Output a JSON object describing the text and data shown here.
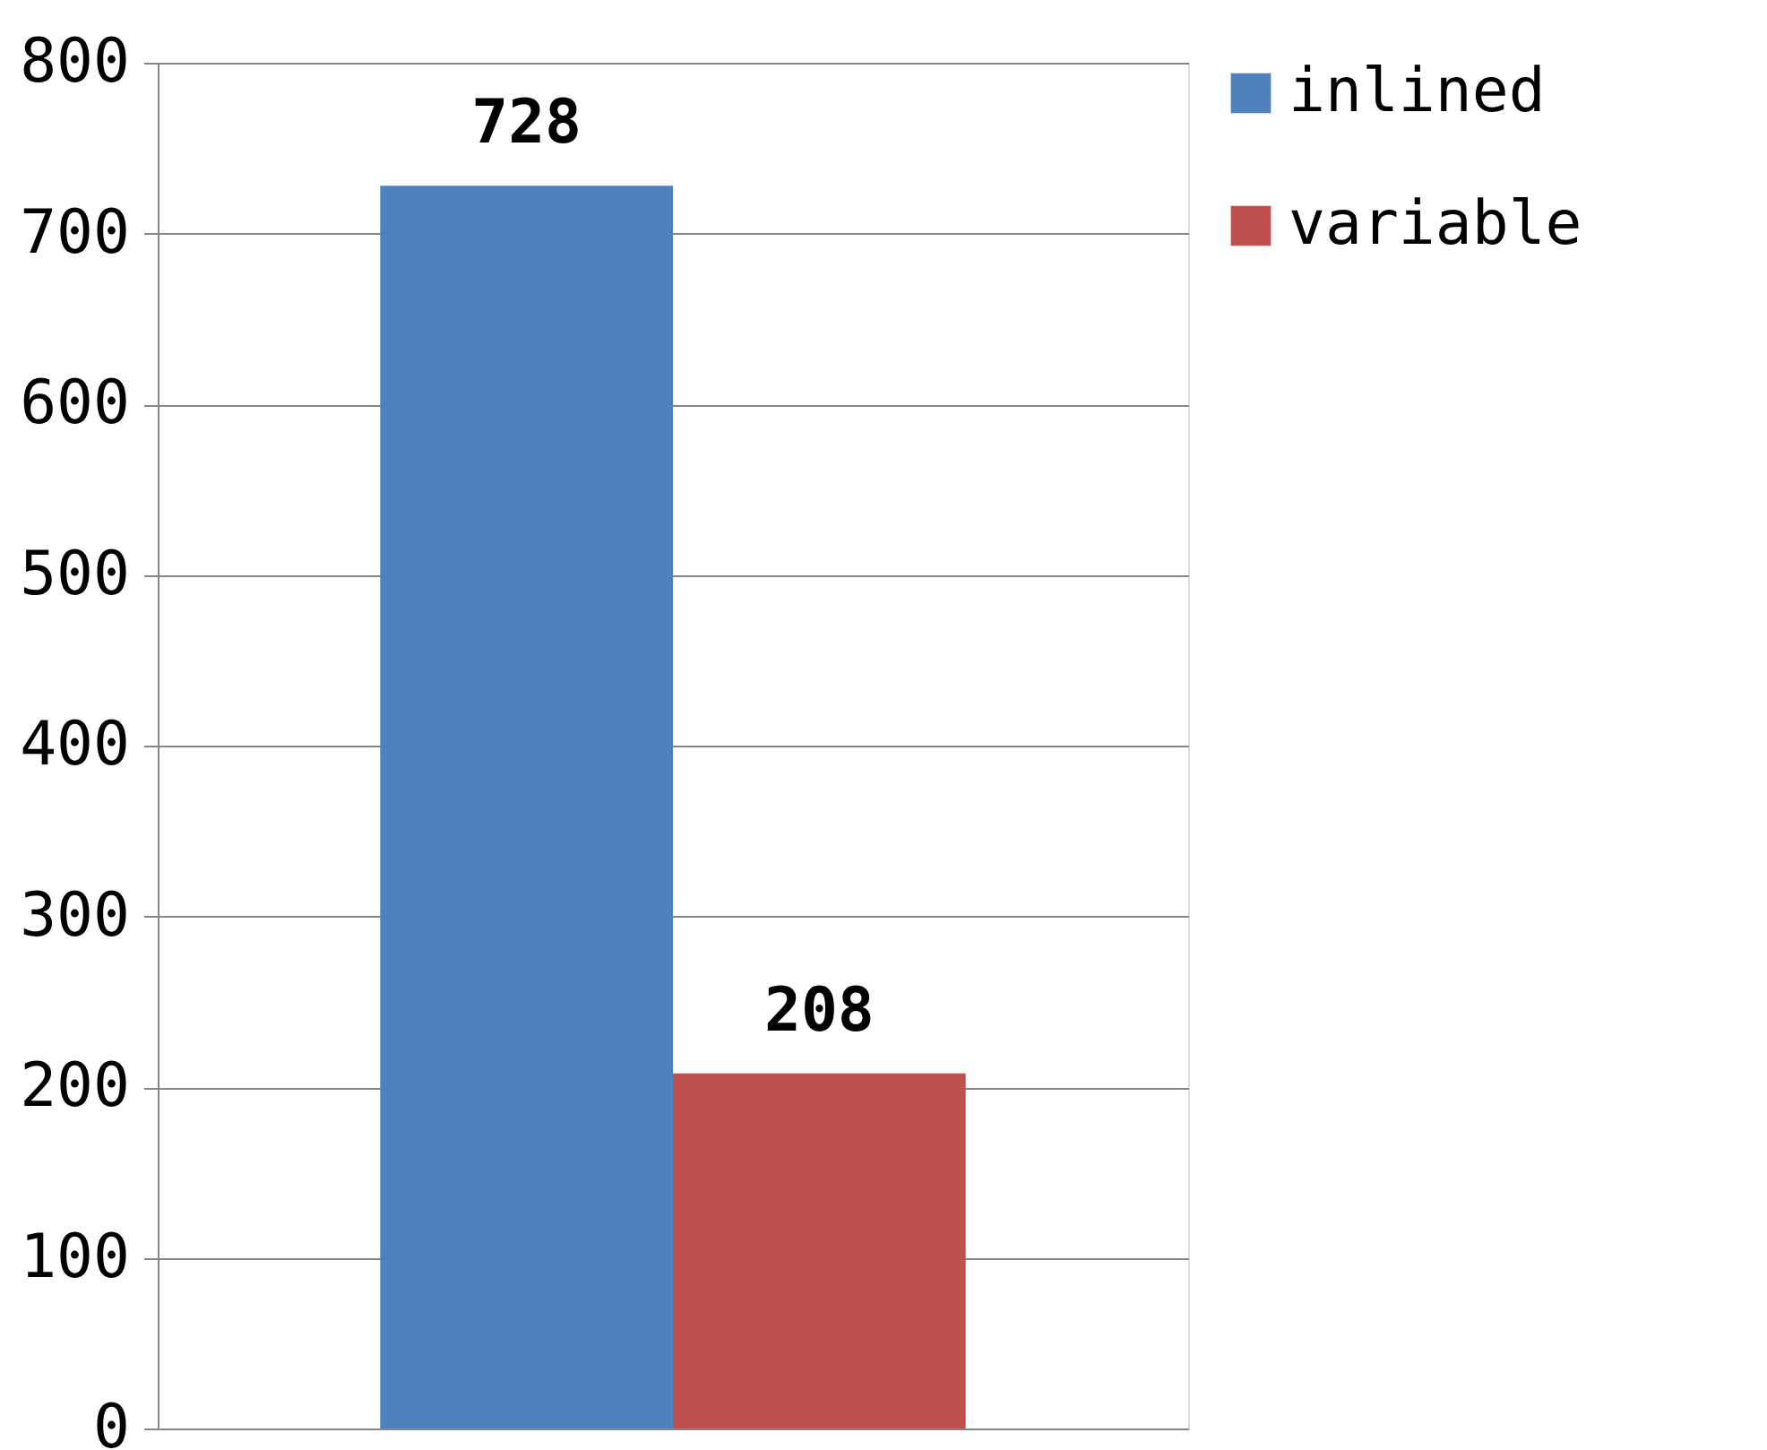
{
  "chart_data": {
    "type": "bar",
    "categories": [
      null
    ],
    "series": [
      {
        "name": "inlined",
        "color": "#4f81bd",
        "values": [
          728
        ]
      },
      {
        "name": "variable",
        "color": "#c0504d",
        "values": [
          208
        ]
      }
    ],
    "ylim": [
      0,
      800
    ],
    "yticks": [
      0,
      100,
      200,
      300,
      400,
      500,
      600,
      700,
      800
    ],
    "grid": "y",
    "legend": "right",
    "data_labels": true
  }
}
